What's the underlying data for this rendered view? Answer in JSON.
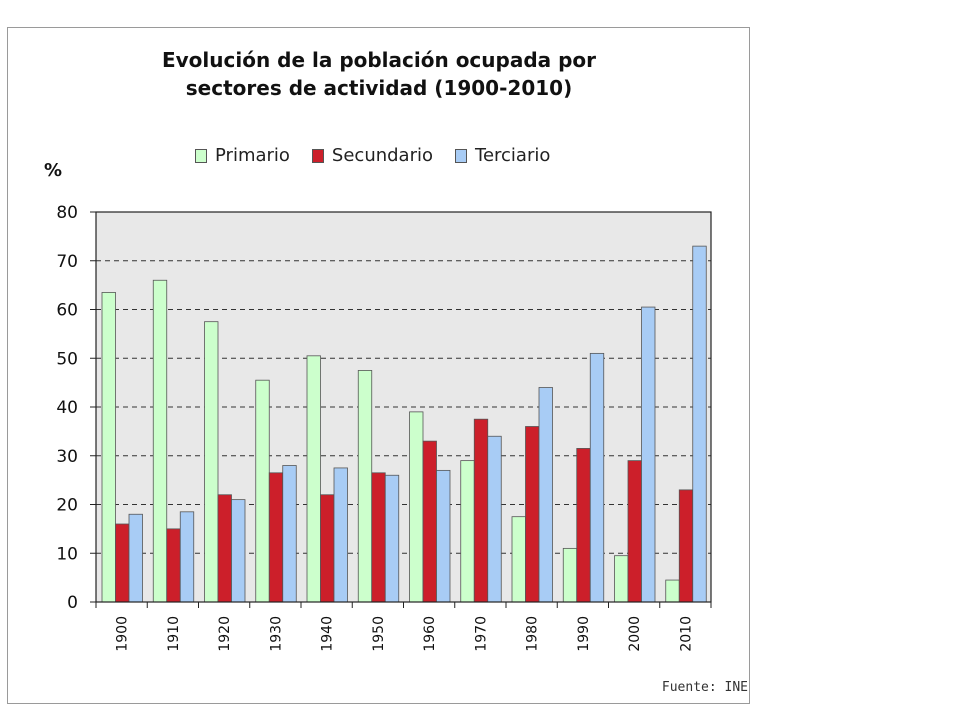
{
  "chart_data": {
    "type": "bar",
    "title_lines": [
      "Evolución de la población ocupada por",
      "sectores de actividad (1900-2010)"
    ],
    "ylabel": "%",
    "ylim": [
      0,
      80
    ],
    "yticks": [
      0,
      10,
      20,
      30,
      40,
      50,
      60,
      70,
      80
    ],
    "grid": "horizontal dashed",
    "legend_position": "top",
    "categories": [
      "1900",
      "1910",
      "1920",
      "1930",
      "1940",
      "1950",
      "1960",
      "1970",
      "1980",
      "1990",
      "2000",
      "2010"
    ],
    "series": [
      {
        "name": "Primario",
        "color": "#ccffcc",
        "values": [
          63.5,
          66,
          57.5,
          45.5,
          50.5,
          47.5,
          39,
          29,
          17.5,
          11,
          9.5,
          4.5
        ]
      },
      {
        "name": "Secundario",
        "color": "#cc1f2a",
        "values": [
          16,
          15,
          22,
          26.5,
          22,
          26.5,
          33,
          37.5,
          36,
          31.5,
          29,
          23
        ]
      },
      {
        "name": "Terciario",
        "color": "#a8ccf5",
        "values": [
          18,
          18.5,
          21,
          28,
          27.5,
          26,
          27,
          34,
          44,
          51,
          60.5,
          73
        ]
      }
    ],
    "source": "Fuente: INE"
  }
}
